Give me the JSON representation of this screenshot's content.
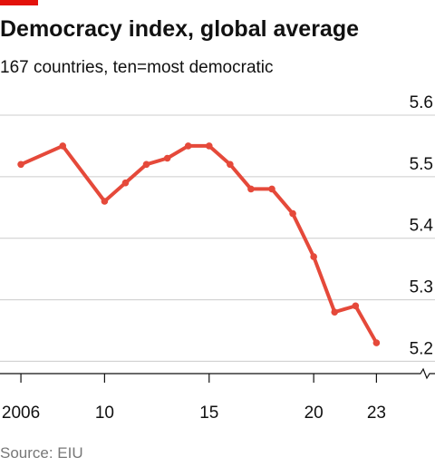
{
  "chart_data": {
    "type": "line",
    "title": "Democracy index, global average",
    "subtitle": "167 countries, ten=most democratic",
    "source": "Source: EIU",
    "x": [
      2006,
      2008,
      2010,
      2011,
      2012,
      2013,
      2014,
      2015,
      2016,
      2017,
      2018,
      2019,
      2020,
      2021,
      2022,
      2023
    ],
    "values": [
      5.52,
      5.55,
      5.46,
      5.49,
      5.52,
      5.53,
      5.55,
      5.55,
      5.52,
      5.48,
      5.48,
      5.44,
      5.37,
      5.28,
      5.29,
      5.23
    ],
    "color": "#e5493a",
    "xlim": [
      2005,
      2025.8
    ],
    "xticks": [
      2006,
      {
        "value": 2010,
        "label": "10"
      },
      {
        "value": 2015,
        "label": "15"
      },
      {
        "value": 2020,
        "label": "20"
      },
      {
        "value": 2023,
        "label": "23"
      }
    ],
    "ylim": [
      5.18,
      5.6
    ],
    "yticks": [
      5.2,
      5.3,
      5.4,
      5.5,
      5.6
    ],
    "grid": true
  }
}
